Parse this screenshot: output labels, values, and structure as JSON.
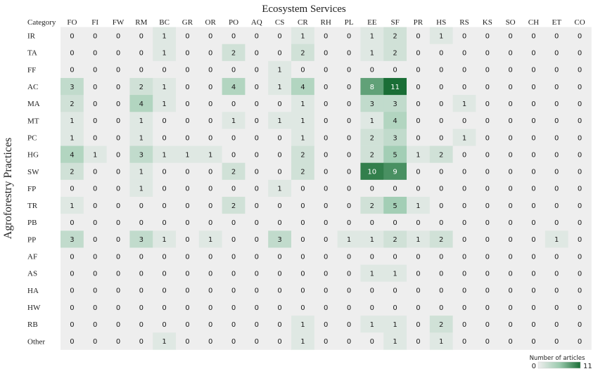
{
  "chart_data": {
    "type": "heatmap",
    "title": "Ecosystem Services",
    "ylabel": "Agroforestry Practices",
    "corner_label": "Category",
    "columns": [
      "FO",
      "FI",
      "FW",
      "RM",
      "BC",
      "GR",
      "OR",
      "PO",
      "AQ",
      "CS",
      "CR",
      "RH",
      "PL",
      "EE",
      "SF",
      "PR",
      "HS",
      "RS",
      "KS",
      "SO",
      "CH",
      "ET",
      "CO"
    ],
    "rows": [
      "IR",
      "TA",
      "FF",
      "AC",
      "MA",
      "MT",
      "PC",
      "HG",
      "SW",
      "FP",
      "TR",
      "PB",
      "PP",
      "AF",
      "AS",
      "HA",
      "HW",
      "RB",
      "Other"
    ],
    "values": [
      [
        0,
        0,
        0,
        0,
        1,
        0,
        0,
        0,
        0,
        0,
        1,
        0,
        0,
        1,
        2,
        0,
        1,
        0,
        0,
        0,
        0,
        0,
        0
      ],
      [
        0,
        0,
        0,
        0,
        1,
        0,
        0,
        2,
        0,
        0,
        2,
        0,
        0,
        1,
        2,
        0,
        0,
        0,
        0,
        0,
        0,
        0,
        0
      ],
      [
        0,
        0,
        0,
        0,
        0,
        0,
        0,
        0,
        0,
        1,
        0,
        0,
        0,
        0,
        0,
        0,
        0,
        0,
        0,
        0,
        0,
        0,
        0
      ],
      [
        3,
        0,
        0,
        2,
        1,
        0,
        0,
        4,
        0,
        1,
        4,
        0,
        0,
        8,
        11,
        0,
        0,
        0,
        0,
        0,
        0,
        0,
        0
      ],
      [
        2,
        0,
        0,
        4,
        1,
        0,
        0,
        0,
        0,
        0,
        1,
        0,
        0,
        3,
        3,
        0,
        0,
        1,
        0,
        0,
        0,
        0,
        0
      ],
      [
        1,
        0,
        0,
        1,
        0,
        0,
        0,
        1,
        0,
        1,
        1,
        0,
        0,
        1,
        4,
        0,
        0,
        0,
        0,
        0,
        0,
        0,
        0
      ],
      [
        1,
        0,
        0,
        1,
        0,
        0,
        0,
        0,
        0,
        0,
        1,
        0,
        0,
        2,
        3,
        0,
        0,
        1,
        0,
        0,
        0,
        0,
        0
      ],
      [
        4,
        1,
        0,
        3,
        1,
        1,
        1,
        0,
        0,
        0,
        2,
        0,
        0,
        2,
        5,
        1,
        2,
        0,
        0,
        0,
        0,
        0,
        0
      ],
      [
        2,
        0,
        0,
        1,
        0,
        0,
        0,
        2,
        0,
        0,
        2,
        0,
        0,
        10,
        9,
        0,
        0,
        0,
        0,
        0,
        0,
        0,
        0
      ],
      [
        0,
        0,
        0,
        1,
        0,
        0,
        0,
        0,
        0,
        1,
        0,
        0,
        0,
        0,
        0,
        0,
        0,
        0,
        0,
        0,
        0,
        0,
        0
      ],
      [
        1,
        0,
        0,
        0,
        0,
        0,
        0,
        2,
        0,
        0,
        0,
        0,
        0,
        2,
        5,
        1,
        0,
        0,
        0,
        0,
        0,
        0,
        0
      ],
      [
        0,
        0,
        0,
        0,
        0,
        0,
        0,
        0,
        0,
        0,
        0,
        0,
        0,
        0,
        0,
        0,
        0,
        0,
        0,
        0,
        0,
        0,
        0
      ],
      [
        3,
        0,
        0,
        3,
        1,
        0,
        1,
        0,
        0,
        3,
        0,
        0,
        1,
        1,
        2,
        1,
        2,
        0,
        0,
        0,
        0,
        1,
        0
      ],
      [
        0,
        0,
        0,
        0,
        0,
        0,
        0,
        0,
        0,
        0,
        0,
        0,
        0,
        0,
        0,
        0,
        0,
        0,
        0,
        0,
        0,
        0,
        0
      ],
      [
        0,
        0,
        0,
        0,
        0,
        0,
        0,
        0,
        0,
        0,
        0,
        0,
        0,
        1,
        1,
        0,
        0,
        0,
        0,
        0,
        0,
        0,
        0
      ],
      [
        0,
        0,
        0,
        0,
        0,
        0,
        0,
        0,
        0,
        0,
        0,
        0,
        0,
        0,
        0,
        0,
        0,
        0,
        0,
        0,
        0,
        0,
        0
      ],
      [
        0,
        0,
        0,
        0,
        0,
        0,
        0,
        0,
        0,
        0,
        0,
        0,
        0,
        0,
        0,
        0,
        0,
        0,
        0,
        0,
        0,
        0,
        0
      ],
      [
        0,
        0,
        0,
        0,
        0,
        0,
        0,
        0,
        0,
        0,
        1,
        0,
        0,
        1,
        1,
        0,
        2,
        0,
        0,
        0,
        0,
        0,
        0
      ],
      [
        0,
        0,
        0,
        0,
        1,
        0,
        0,
        0,
        0,
        0,
        1,
        0,
        0,
        0,
        1,
        0,
        1,
        0,
        0,
        0,
        0,
        0,
        0
      ]
    ],
    "colorbar": {
      "label": "Number of articles",
      "min": 0,
      "max": 11
    },
    "colors": {
      "low": "#eeeeee",
      "mid": "#9ccbaf",
      "high": "#1a6e36"
    },
    "grid": false
  }
}
